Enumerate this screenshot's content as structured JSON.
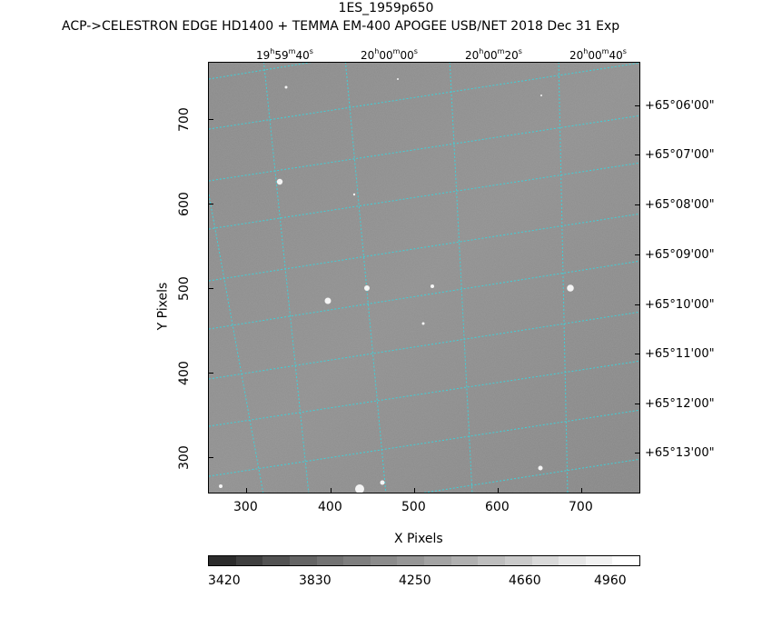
{
  "title": "1ES_1959p650",
  "subtitle": "ACP->CELESTRON EDGE HD1400 + TEMMA EM-400 APOGEE USB/NET   2018 Dec 31    Exp",
  "axes": {
    "xlabel": "X Pixels",
    "ylabel": "Y Pixels",
    "x_ticks": [
      "300",
      "400",
      "500",
      "600",
      "700"
    ],
    "y_ticks": [
      "700",
      "600",
      "500",
      "400",
      "300"
    ],
    "ra_ticks": [
      {
        "h": "19",
        "m": "59",
        "s": "40"
      },
      {
        "h": "20",
        "m": "00",
        "s": "00"
      },
      {
        "h": "20",
        "m": "00",
        "s": "20"
      },
      {
        "h": "20",
        "m": "00",
        "s": "40"
      }
    ],
    "dec_ticks": [
      "+65°06'00\"",
      "+65°07'00\"",
      "+65°08'00\"",
      "+65°09'00\"",
      "+65°10'00\"",
      "+65°11'00\"",
      "+65°12'00\"",
      "+65°13'00\""
    ]
  },
  "colorbar": {
    "labels": [
      "3420",
      "3830",
      "4250",
      "4660",
      "4960"
    ],
    "colors": [
      "#2c2c2c",
      "#3f3f3f",
      "#525252",
      "#646464",
      "#727272",
      "#7e7e7e",
      "#8b8b8b",
      "#969696",
      "#a3a3a3",
      "#b0b0b0",
      "#bdbdbd",
      "#cacaca",
      "#d9d9d9",
      "#e6e6e6",
      "#f2f2f2",
      "#ffffff"
    ]
  },
  "grid_color": "#3fd0d8"
}
